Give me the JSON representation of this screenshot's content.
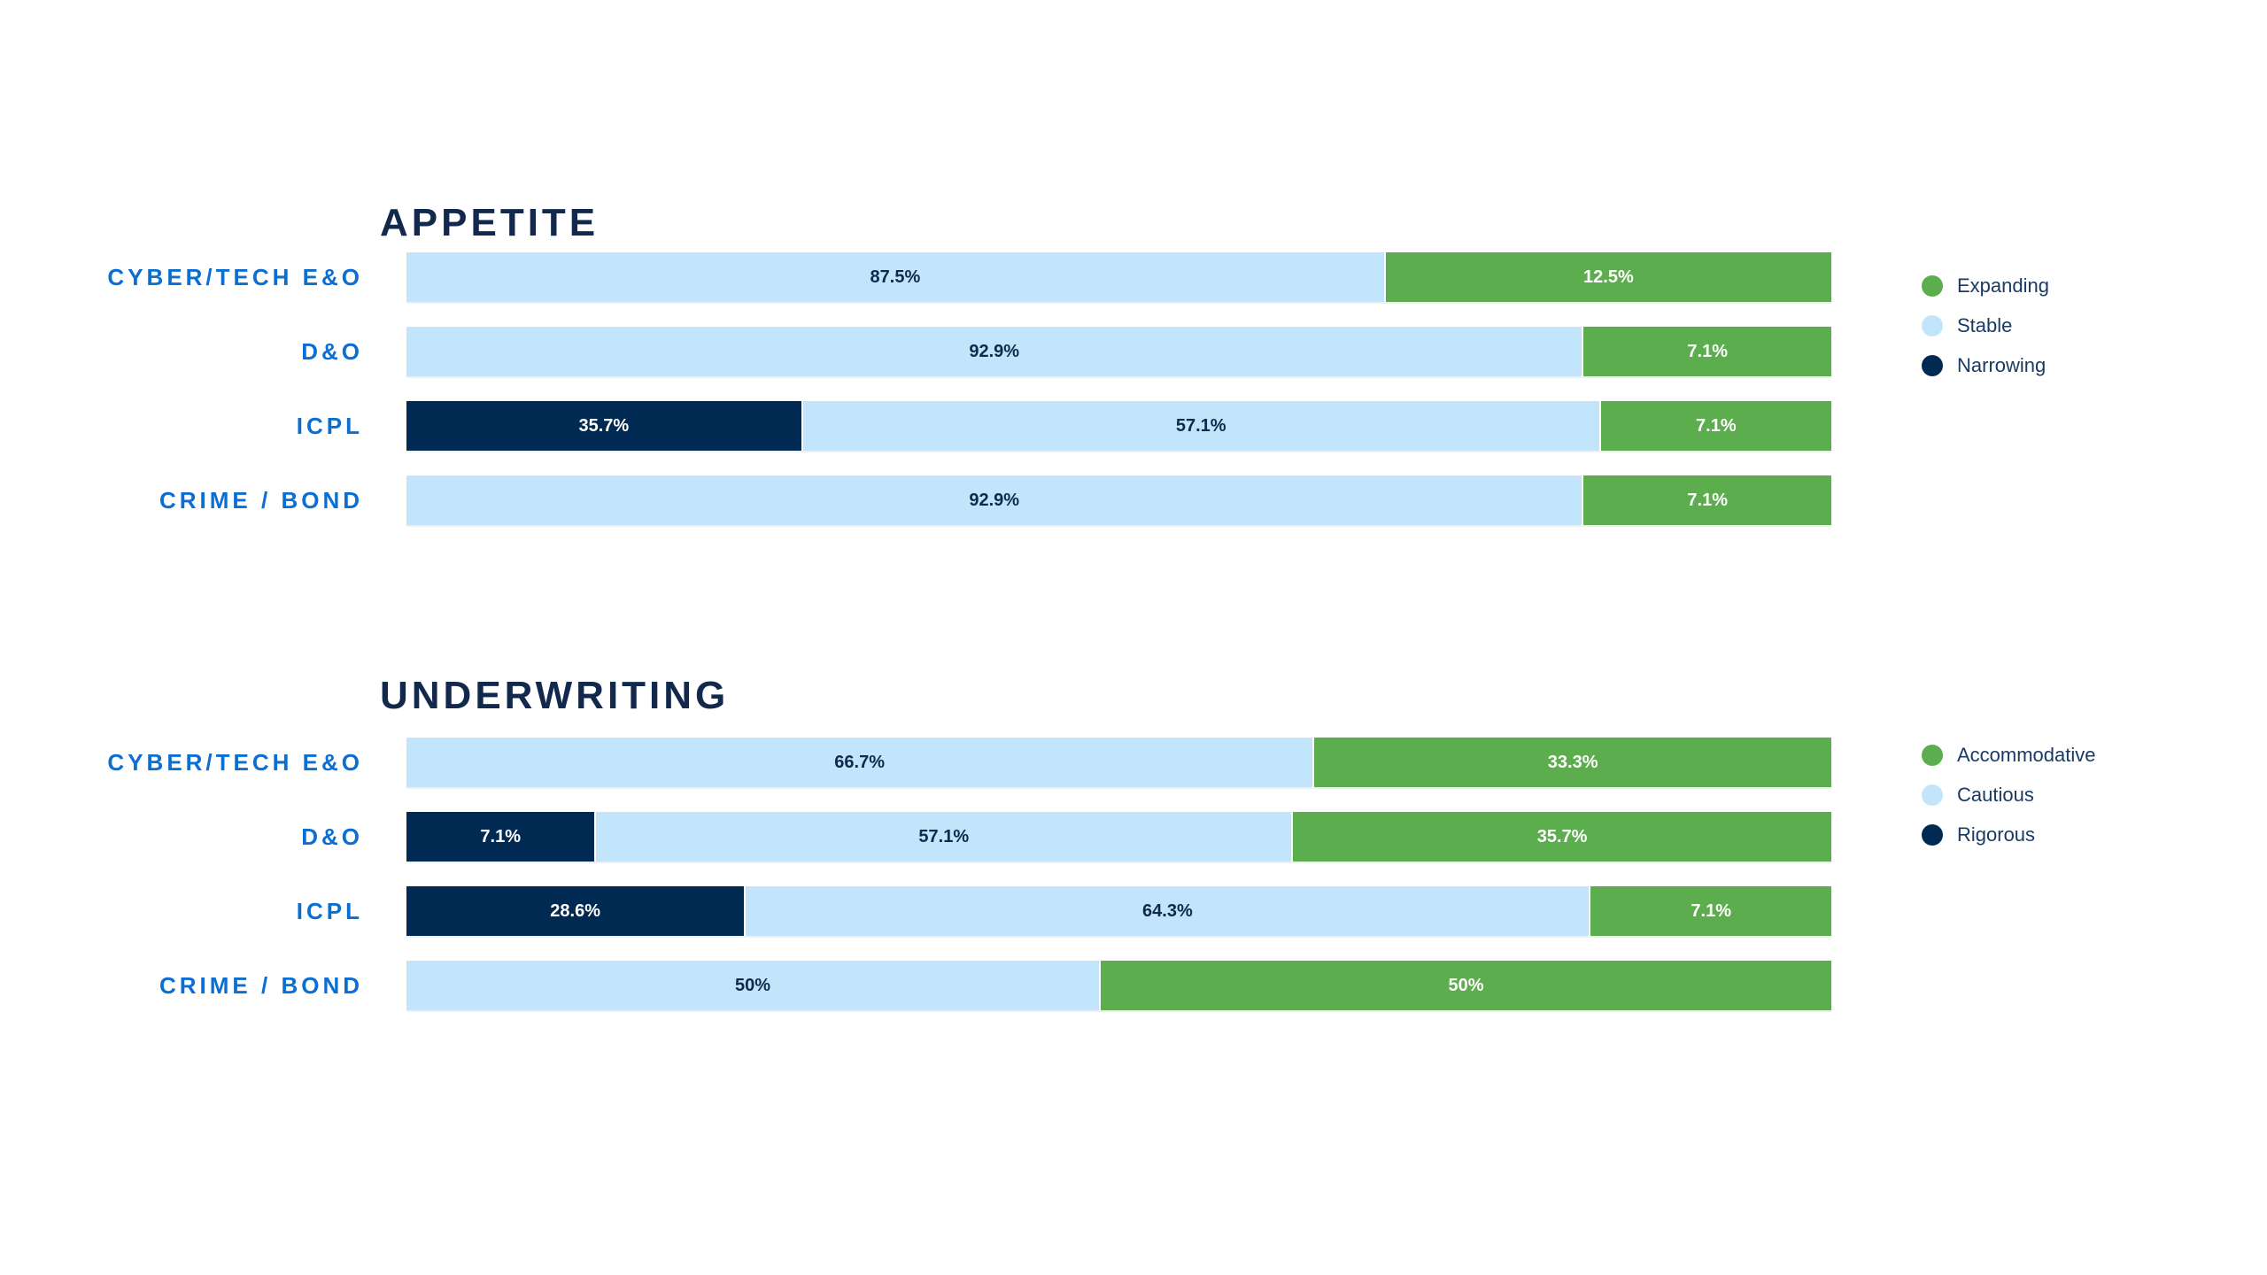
{
  "page": {
    "background": "#FFFFFF"
  },
  "palette": {
    "green": "#5CAD4D",
    "light_blue": "#C3E5FB",
    "navy": "#002A52",
    "title_text": "#12294D",
    "category_text": "#0A6ED2",
    "legend_text": "#1A3A64",
    "pct_dark": "#0E2A4D",
    "pct_light": "#FFFFFF"
  },
  "chart_data": [
    {
      "type": "bar",
      "orientation": "horizontal",
      "stacked": true,
      "title": "APPETITE",
      "x_range": [
        0,
        100
      ],
      "unit": "percent",
      "gridlines": false,
      "categories": [
        "CYBER/TECH E&O",
        "D&O",
        "ICPL",
        "CRIME / BOND"
      ],
      "series": [
        {
          "name": "Narrowing",
          "color": "#002A52",
          "values": [
            0,
            0,
            35.7,
            0
          ]
        },
        {
          "name": "Stable",
          "color": "#C3E5FB",
          "values": [
            87.5,
            92.9,
            57.1,
            92.9
          ]
        },
        {
          "name": "Expanding",
          "color": "#5CAD4D",
          "values": [
            12.5,
            7.1,
            7.1,
            7.1
          ]
        }
      ],
      "legend": {
        "position": "right",
        "items": [
          {
            "label": "Expanding",
            "color": "#5CAD4D"
          },
          {
            "label": "Stable",
            "color": "#C3E5FB"
          },
          {
            "label": "Narrowing",
            "color": "#002A52"
          }
        ]
      },
      "rows": [
        {
          "category": "CYBER/TECH E&O",
          "segments": [
            {
              "series": "Stable",
              "value": 87.5,
              "label": "87.5%",
              "color": "#C3E5FB",
              "label_color": "#0E2A4D",
              "display_width_pct": 68.6
            },
            {
              "series": "Expanding",
              "value": 12.5,
              "label": "12.5%",
              "color": "#5CAD4D",
              "label_color": "#FFFFFF",
              "display_width_pct": 31.4
            }
          ]
        },
        {
          "category": "D&O",
          "segments": [
            {
              "series": "Stable",
              "value": 92.9,
              "label": "92.9%",
              "color": "#C3E5FB",
              "label_color": "#0E2A4D",
              "display_width_pct": 82.5
            },
            {
              "series": "Expanding",
              "value": 7.1,
              "label": "7.1%",
              "color": "#5CAD4D",
              "label_color": "#FFFFFF",
              "display_width_pct": 17.5
            }
          ]
        },
        {
          "category": "ICPL",
          "segments": [
            {
              "series": "Narrowing",
              "value": 35.7,
              "label": "35.7%",
              "color": "#002A52",
              "label_color": "#FFFFFF",
              "display_width_pct": 27.7
            },
            {
              "series": "Stable",
              "value": 57.1,
              "label": "57.1%",
              "color": "#C3E5FB",
              "label_color": "#0E2A4D",
              "display_width_pct": 56.0
            },
            {
              "series": "Expanding",
              "value": 7.1,
              "label": "7.1%",
              "color": "#5CAD4D",
              "label_color": "#FFFFFF",
              "display_width_pct": 16.3
            }
          ]
        },
        {
          "category": "CRIME / BOND",
          "segments": [
            {
              "series": "Stable",
              "value": 92.9,
              "label": "92.9%",
              "color": "#C3E5FB",
              "label_color": "#0E2A4D",
              "display_width_pct": 82.5
            },
            {
              "series": "Expanding",
              "value": 7.1,
              "label": "7.1%",
              "color": "#5CAD4D",
              "label_color": "#FFFFFF",
              "display_width_pct": 17.5
            }
          ]
        }
      ]
    },
    {
      "type": "bar",
      "orientation": "horizontal",
      "stacked": true,
      "title": "UNDERWRITING",
      "x_range": [
        0,
        100
      ],
      "unit": "percent",
      "gridlines": false,
      "categories": [
        "CYBER/TECH E&O",
        "D&O",
        "ICPL",
        "CRIME / BOND"
      ],
      "series": [
        {
          "name": "Rigorous",
          "color": "#002A52",
          "values": [
            0,
            7.1,
            28.6,
            0
          ]
        },
        {
          "name": "Cautious",
          "color": "#C3E5FB",
          "values": [
            66.7,
            57.1,
            64.3,
            50
          ]
        },
        {
          "name": "Accommodative",
          "color": "#5CAD4D",
          "values": [
            33.3,
            35.7,
            7.1,
            50
          ]
        }
      ],
      "legend": {
        "position": "right",
        "items": [
          {
            "label": "Accommodative",
            "color": "#5CAD4D"
          },
          {
            "label": "Cautious",
            "color": "#C3E5FB"
          },
          {
            "label": "Rigorous",
            "color": "#002A52"
          }
        ]
      },
      "rows": [
        {
          "category": "CYBER/TECH E&O",
          "segments": [
            {
              "series": "Cautious",
              "value": 66.7,
              "label": "66.7%",
              "color": "#C3E5FB",
              "label_color": "#0E2A4D",
              "display_width_pct": 63.6
            },
            {
              "series": "Accommodative",
              "value": 33.3,
              "label": "33.3%",
              "color": "#5CAD4D",
              "label_color": "#FFFFFF",
              "display_width_pct": 36.4
            }
          ]
        },
        {
          "category": "D&O",
          "segments": [
            {
              "series": "Rigorous",
              "value": 7.1,
              "label": "7.1%",
              "color": "#002A52",
              "label_color": "#FFFFFF",
              "display_width_pct": 13.2
            },
            {
              "series": "Cautious",
              "value": 57.1,
              "label": "57.1%",
              "color": "#C3E5FB",
              "label_color": "#0E2A4D",
              "display_width_pct": 48.9
            },
            {
              "series": "Accommodative",
              "value": 35.7,
              "label": "35.7%",
              "color": "#5CAD4D",
              "label_color": "#FFFFFF",
              "display_width_pct": 37.9
            }
          ]
        },
        {
          "category": "ICPL",
          "segments": [
            {
              "series": "Rigorous",
              "value": 28.6,
              "label": "28.6%",
              "color": "#002A52",
              "label_color": "#FFFFFF",
              "display_width_pct": 23.7
            },
            {
              "series": "Cautious",
              "value": 64.3,
              "label": "64.3%",
              "color": "#C3E5FB",
              "label_color": "#0E2A4D",
              "display_width_pct": 59.3
            },
            {
              "series": "Accommodative",
              "value": 7.1,
              "label": "7.1%",
              "color": "#5CAD4D",
              "label_color": "#FFFFFF",
              "display_width_pct": 17.0
            }
          ]
        },
        {
          "category": "CRIME / BOND",
          "segments": [
            {
              "series": "Cautious",
              "value": 50,
              "label": "50%",
              "color": "#C3E5FB",
              "label_color": "#0E2A4D",
              "display_width_pct": 48.6
            },
            {
              "series": "Accommodative",
              "value": 50,
              "label": "50%",
              "color": "#5CAD4D",
              "label_color": "#FFFFFF",
              "display_width_pct": 51.4
            }
          ]
        }
      ]
    }
  ]
}
